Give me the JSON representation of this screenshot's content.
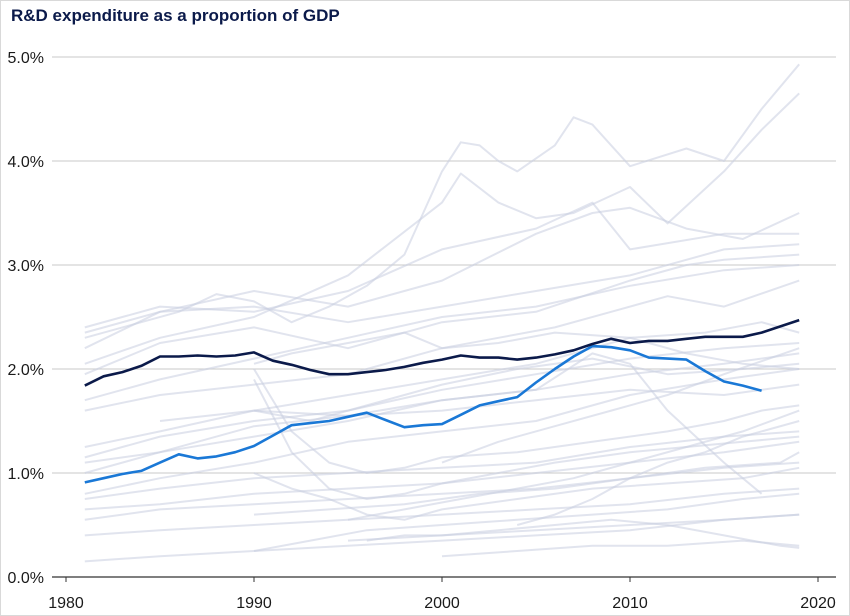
{
  "chart_data": {
    "type": "line",
    "title": "R&D expenditure as a proportion of GDP",
    "xlabel": "",
    "ylabel": "",
    "xlim": [
      1980,
      2020
    ],
    "ylim": [
      0,
      5
    ],
    "grid": true,
    "x_ticks": [
      1980,
      1990,
      2000,
      2010,
      2020
    ],
    "x_tick_labels": [
      "1980",
      "1990",
      "2000",
      "2010",
      "2020"
    ],
    "y_ticks": [
      0,
      1,
      2,
      3,
      4,
      5
    ],
    "y_tick_labels": [
      "0.0%",
      "1.0%",
      "2.0%",
      "3.0%",
      "4.0%",
      "5.0%"
    ],
    "colors": {
      "highlight_dark": "#0b1a4a",
      "highlight_blue": "#1a78d6",
      "background_series": "#c8cde0",
      "grid": "#c9c9c9"
    },
    "highlighted_series": [
      {
        "color": "#0b1a4a",
        "x": [
          1981,
          1982,
          1983,
          1984,
          1985,
          1986,
          1987,
          1988,
          1989,
          1990,
          1991,
          1992,
          1993,
          1994,
          1995,
          1996,
          1997,
          1998,
          1999,
          2000,
          2001,
          2002,
          2003,
          2004,
          2005,
          2006,
          2007,
          2008,
          2009,
          2010,
          2011,
          2012,
          2013,
          2014,
          2015,
          2016,
          2017,
          2018,
          2019
        ],
        "values": [
          1.84,
          1.93,
          1.97,
          2.03,
          2.12,
          2.12,
          2.13,
          2.12,
          2.13,
          2.16,
          2.08,
          2.04,
          1.99,
          1.95,
          1.95,
          1.97,
          1.99,
          2.02,
          2.06,
          2.09,
          2.13,
          2.11,
          2.11,
          2.09,
          2.11,
          2.14,
          2.18,
          2.24,
          2.29,
          2.25,
          2.27,
          2.27,
          2.29,
          2.31,
          2.31,
          2.31,
          2.35,
          2.41,
          2.47
        ]
      },
      {
        "color": "#1a78d6",
        "x": [
          1981,
          1982,
          1983,
          1984,
          1985,
          1986,
          1987,
          1988,
          1989,
          1990,
          1991,
          1992,
          1993,
          1994,
          1995,
          1996,
          1997,
          1998,
          1999,
          2000,
          2001,
          2002,
          2003,
          2004,
          2005,
          2006,
          2007,
          2008,
          2009,
          2010,
          2011,
          2012,
          2013,
          2014,
          2015,
          2016,
          2017
        ],
        "values": [
          0.91,
          0.95,
          0.99,
          1.02,
          1.1,
          1.18,
          1.14,
          1.16,
          1.2,
          1.26,
          1.36,
          1.46,
          1.48,
          1.5,
          1.54,
          1.58,
          1.51,
          1.44,
          1.46,
          1.47,
          1.56,
          1.65,
          1.69,
          1.73,
          1.87,
          2.0,
          2.12,
          2.22,
          2.21,
          2.18,
          2.11,
          2.1,
          2.09,
          1.98,
          1.88,
          1.84,
          1.79
        ]
      }
    ],
    "background_series": [
      {
        "x": [
          1981,
          1984,
          1986,
          1988,
          1990,
          1992,
          1994,
          1996,
          1998,
          2000,
          2001,
          2002,
          2003,
          2004,
          2006,
          2007,
          2008,
          2010,
          2013,
          2015,
          2017,
          2019
        ],
        "values": [
          2.3,
          2.45,
          2.55,
          2.72,
          2.65,
          2.45,
          2.6,
          2.8,
          3.1,
          3.9,
          4.18,
          4.15,
          4.0,
          3.9,
          4.15,
          4.42,
          4.35,
          3.95,
          4.12,
          4.0,
          4.5,
          4.93
        ]
      },
      {
        "x": [
          1981,
          1985,
          1990,
          1995,
          2000,
          2001,
          2003,
          2005,
          2007,
          2010,
          2012,
          2015,
          2017,
          2019
        ],
        "values": [
          2.05,
          2.3,
          2.5,
          2.9,
          3.6,
          3.88,
          3.6,
          3.45,
          3.5,
          3.75,
          3.4,
          3.9,
          4.3,
          4.65
        ]
      },
      {
        "x": [
          1981,
          1985,
          1990,
          1995,
          2000,
          2005,
          2008,
          2010,
          2013,
          2016,
          2019
        ],
        "values": [
          2.2,
          2.55,
          2.75,
          2.6,
          2.85,
          3.3,
          3.5,
          3.55,
          3.35,
          3.25,
          3.5
        ]
      },
      {
        "x": [
          1981,
          1985,
          1990,
          1995,
          2000,
          2005,
          2008,
          2010,
          2015,
          2019
        ],
        "values": [
          2.4,
          2.6,
          2.55,
          2.75,
          3.15,
          3.35,
          3.6,
          3.15,
          3.3,
          3.3
        ]
      },
      {
        "x": [
          1981,
          1985,
          1990,
          1995,
          2000,
          2005,
          2010,
          2015,
          2019
        ],
        "values": [
          2.35,
          2.55,
          2.6,
          2.45,
          2.6,
          2.75,
          2.9,
          3.15,
          3.2
        ]
      },
      {
        "x": [
          1981,
          1985,
          1990,
          1995,
          2000,
          2005,
          2010,
          2013,
          2015,
          2019
        ],
        "values": [
          1.95,
          2.25,
          2.4,
          2.2,
          2.45,
          2.55,
          2.85,
          3.0,
          3.05,
          3.1
        ]
      },
      {
        "x": [
          1981,
          1985,
          1990,
          1995,
          2000,
          2005,
          2010,
          2015,
          2019
        ],
        "values": [
          1.7,
          1.9,
          2.1,
          2.3,
          2.5,
          2.6,
          2.8,
          2.95,
          3.0
        ]
      },
      {
        "x": [
          1990,
          1992,
          1995,
          1998,
          2000,
          2003,
          2006,
          2009,
          2012,
          2015,
          2019
        ],
        "values": [
          2.05,
          2.15,
          2.25,
          2.35,
          2.2,
          2.3,
          2.4,
          2.55,
          2.7,
          2.6,
          2.85
        ]
      },
      {
        "x": [
          1981,
          1985,
          1990,
          1995,
          2000,
          2003,
          2006,
          2010,
          2014,
          2017,
          2019
        ],
        "values": [
          1.6,
          1.75,
          1.85,
          1.95,
          2.2,
          2.25,
          2.35,
          2.3,
          2.35,
          2.45,
          2.35
        ]
      },
      {
        "x": [
          1981,
          1985,
          1990,
          1995,
          2000,
          2005,
          2010,
          2015,
          2019
        ],
        "values": [
          1.15,
          1.35,
          1.5,
          1.6,
          1.8,
          1.95,
          2.1,
          2.2,
          2.25
        ]
      },
      {
        "x": [
          1981,
          1985,
          1990,
          1995,
          2000,
          2005,
          2010,
          2015,
          2019
        ],
        "values": [
          1.0,
          1.2,
          1.35,
          1.5,
          1.7,
          1.8,
          1.95,
          2.05,
          2.15
        ]
      },
      {
        "x": [
          1981,
          1985,
          1990,
          1995,
          2000,
          2005,
          2008,
          2010,
          2013,
          2016,
          2019
        ],
        "values": [
          1.25,
          1.4,
          1.6,
          1.75,
          1.9,
          2.05,
          2.2,
          2.3,
          2.15,
          2.05,
          2.0
        ]
      },
      {
        "x": [
          1990,
          1993,
          1996,
          2000,
          2004,
          2008,
          2012,
          2016,
          2019
        ],
        "values": [
          1.6,
          1.5,
          1.65,
          1.85,
          2.0,
          2.1,
          1.95,
          2.0,
          2.05
        ]
      },
      {
        "x": [
          1981,
          1985,
          1990,
          1995,
          2000,
          2005,
          2010,
          2015,
          2019
        ],
        "values": [
          0.8,
          0.95,
          1.1,
          1.3,
          1.4,
          1.5,
          1.75,
          1.9,
          2.0
        ]
      },
      {
        "x": [
          1985,
          1990,
          1995,
          2000,
          2005,
          2008,
          2010,
          2012,
          2015,
          2017
        ],
        "values": [
          1.5,
          1.6,
          1.55,
          1.7,
          1.8,
          2.15,
          2.05,
          1.6,
          1.1,
          0.8
        ]
      },
      {
        "x": [
          1981,
          1985,
          1990,
          1995,
          2000,
          2005,
          2010,
          2015,
          2019
        ],
        "values": [
          1.1,
          1.2,
          1.45,
          1.55,
          1.6,
          1.7,
          1.8,
          1.75,
          1.85
        ]
      },
      {
        "x": [
          1990,
          1992,
          1994,
          1996,
          1998,
          2000,
          2004,
          2008,
          2012,
          2015,
          2017,
          2019
        ],
        "values": [
          2.0,
          1.4,
          1.1,
          1.0,
          1.05,
          1.15,
          1.2,
          1.3,
          1.4,
          1.5,
          1.6,
          1.65
        ]
      },
      {
        "x": [
          1981,
          1985,
          1990,
          1995,
          2000,
          2005,
          2010,
          2015,
          2019
        ],
        "values": [
          0.75,
          0.85,
          0.95,
          1.0,
          1.05,
          1.1,
          1.25,
          1.35,
          1.4
        ]
      },
      {
        "x": [
          1981,
          1985,
          1990,
          1995,
          2000,
          2005,
          2010,
          2015,
          2019
        ],
        "values": [
          0.65,
          0.7,
          0.8,
          0.85,
          0.9,
          1.0,
          1.1,
          1.2,
          1.3
        ]
      },
      {
        "x": [
          1990,
          1992,
          1994,
          1996,
          1998,
          2000,
          2003,
          2006,
          2010,
          2013,
          2016,
          2019
        ],
        "values": [
          1.9,
          1.2,
          0.85,
          0.75,
          0.8,
          0.9,
          1.0,
          1.1,
          1.2,
          1.25,
          1.3,
          1.35
        ]
      },
      {
        "x": [
          1981,
          1985,
          1990,
          1995,
          2000,
          2005,
          2010,
          2015,
          2019
        ],
        "values": [
          0.55,
          0.65,
          0.7,
          0.75,
          0.8,
          0.85,
          0.95,
          1.05,
          1.1
        ]
      },
      {
        "x": [
          1990,
          1992,
          1994,
          1996,
          1998,
          2000,
          2004,
          2008,
          2012,
          2016,
          2019
        ],
        "values": [
          1.0,
          0.85,
          0.75,
          0.6,
          0.55,
          0.65,
          0.75,
          0.85,
          0.9,
          0.95,
          1.05
        ]
      },
      {
        "x": [
          1981,
          1985,
          1990,
          1995,
          2000,
          2005,
          2010,
          2015,
          2019
        ],
        "values": [
          0.4,
          0.45,
          0.5,
          0.55,
          0.6,
          0.65,
          0.7,
          0.8,
          0.85
        ]
      },
      {
        "x": [
          1990,
          1993,
          1996,
          2000,
          2004,
          2008,
          2012,
          2016,
          2019
        ],
        "values": [
          0.25,
          0.35,
          0.45,
          0.5,
          0.55,
          0.6,
          0.65,
          0.75,
          0.8
        ]
      },
      {
        "x": [
          1981,
          1985,
          1990,
          1995,
          2000,
          2005,
          2010,
          2015,
          2019
        ],
        "values": [
          0.15,
          0.2,
          0.25,
          0.3,
          0.35,
          0.4,
          0.45,
          0.55,
          0.6
        ]
      },
      {
        "x": [
          1995,
          2000,
          2005,
          2010,
          2015,
          2019
        ],
        "values": [
          0.35,
          0.4,
          0.45,
          0.5,
          0.55,
          0.6
        ]
      },
      {
        "x": [
          1996,
          1998,
          2000,
          2003,
          2006,
          2009,
          2012,
          2015,
          2018,
          2019
        ],
        "values": [
          0.35,
          0.4,
          0.4,
          0.45,
          0.5,
          0.55,
          0.5,
          0.4,
          0.3,
          0.28
        ]
      },
      {
        "x": [
          2000,
          2004,
          2008,
          2012,
          2016,
          2019
        ],
        "values": [
          0.2,
          0.25,
          0.3,
          0.3,
          0.35,
          0.3
        ]
      },
      {
        "x": [
          2000,
          2003,
          2006,
          2009,
          2012,
          2015,
          2019
        ],
        "values": [
          1.1,
          1.3,
          1.45,
          1.6,
          1.75,
          1.95,
          2.2
        ]
      },
      {
        "x": [
          2004,
          2006,
          2008,
          2010,
          2012,
          2014,
          2016,
          2019
        ],
        "values": [
          0.5,
          0.6,
          0.75,
          0.95,
          1.1,
          1.2,
          1.35,
          1.5
        ]
      },
      {
        "x": [
          1995,
          1998,
          2001,
          2004,
          2007,
          2010,
          2013,
          2016,
          2019
        ],
        "values": [
          0.55,
          0.65,
          0.75,
          0.85,
          0.95,
          1.1,
          1.25,
          1.4,
          1.6
        ]
      },
      {
        "x": [
          1990,
          1994,
          1998,
          2002,
          2006,
          2010,
          2014,
          2018,
          2019
        ],
        "values": [
          0.6,
          0.65,
          0.7,
          0.8,
          0.85,
          0.95,
          1.05,
          1.1,
          1.2
        ]
      }
    ]
  }
}
